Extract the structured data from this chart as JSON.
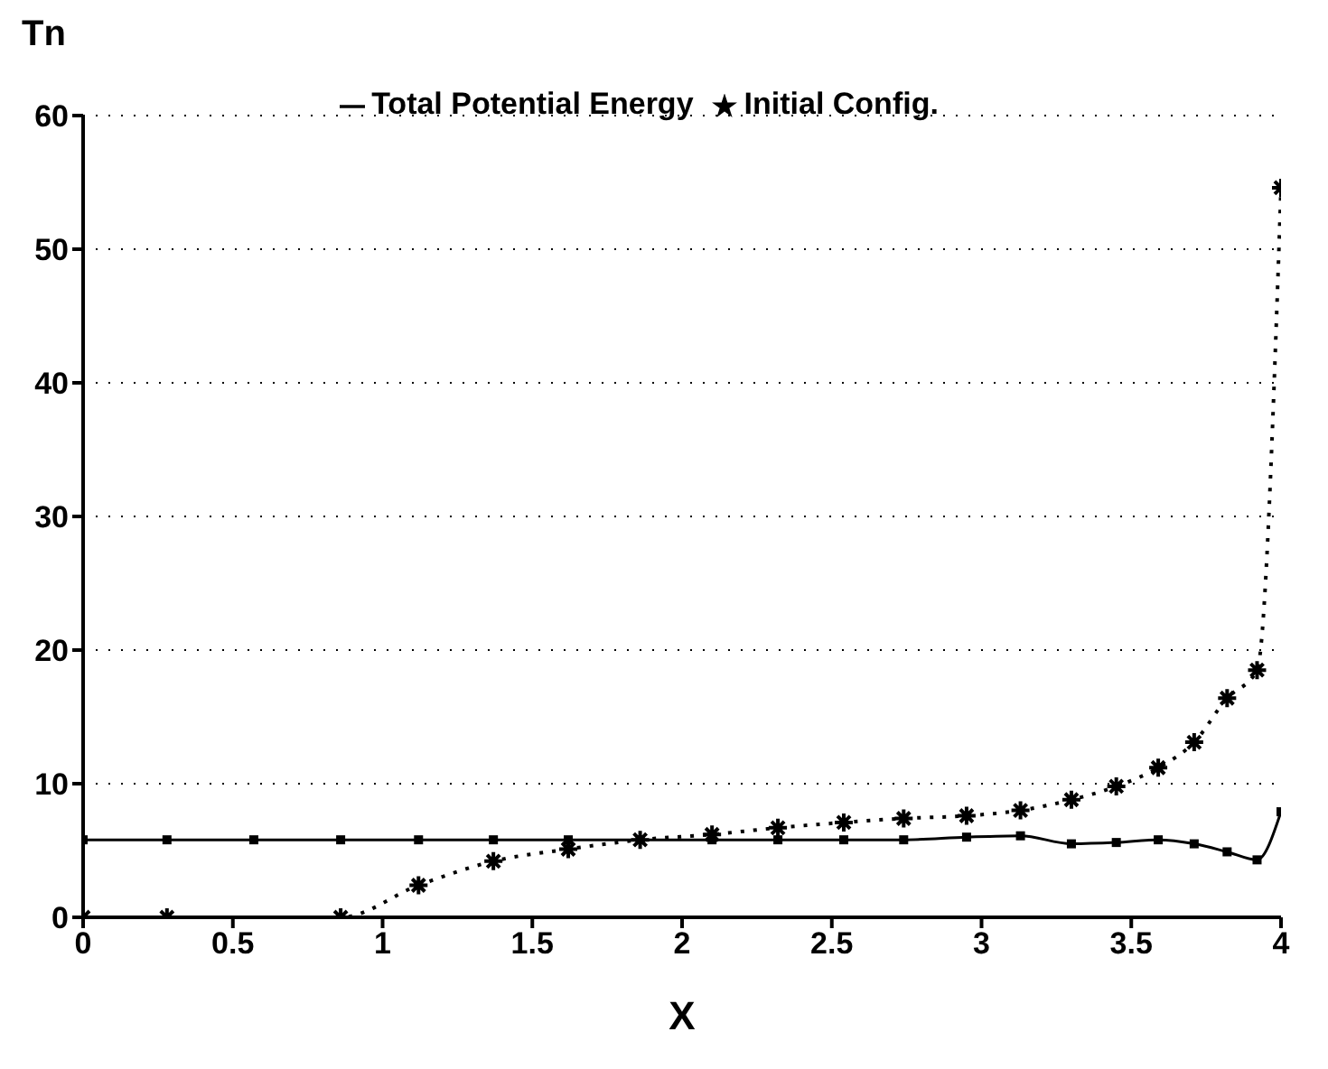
{
  "chart_data": {
    "type": "line",
    "xlabel": "X",
    "ylabel": "Tn",
    "x": [
      0,
      0.28,
      0.57,
      0.86,
      1.12,
      1.37,
      1.62,
      1.86,
      2.1,
      2.32,
      2.54,
      2.74,
      2.95,
      3.13,
      3.3,
      3.45,
      3.59,
      3.71,
      3.82,
      3.92,
      4.0
    ],
    "series": [
      {
        "name": "Total Potential Energy",
        "color": "#000000",
        "marker": "square",
        "line_style": "solid",
        "values": [
          5.8,
          5.8,
          5.8,
          5.8,
          5.8,
          5.8,
          5.8,
          5.8,
          5.8,
          5.8,
          5.8,
          5.8,
          6.0,
          6.1,
          5.5,
          5.6,
          5.8,
          5.5,
          4.9,
          4.3,
          7.9
        ]
      },
      {
        "name": "Initial Config.",
        "color": "#000000",
        "marker": "cross",
        "line_style": "dotted",
        "values": [
          0,
          0,
          null,
          0,
          2.4,
          4.2,
          5.1,
          5.8,
          6.2,
          6.7,
          7.1,
          7.4,
          7.6,
          8.0,
          8.8,
          9.8,
          11.2,
          13.1,
          16.4,
          18.5,
          54.6
        ]
      }
    ],
    "xlim": [
      0,
      4
    ],
    "xticks": [
      0,
      0.5,
      1,
      1.5,
      2,
      2.5,
      3,
      3.5,
      4
    ],
    "ylim": [
      0,
      60
    ],
    "yticks": [
      0,
      10,
      20,
      30,
      40,
      50,
      60
    ],
    "grid": "y",
    "legend": "top"
  }
}
